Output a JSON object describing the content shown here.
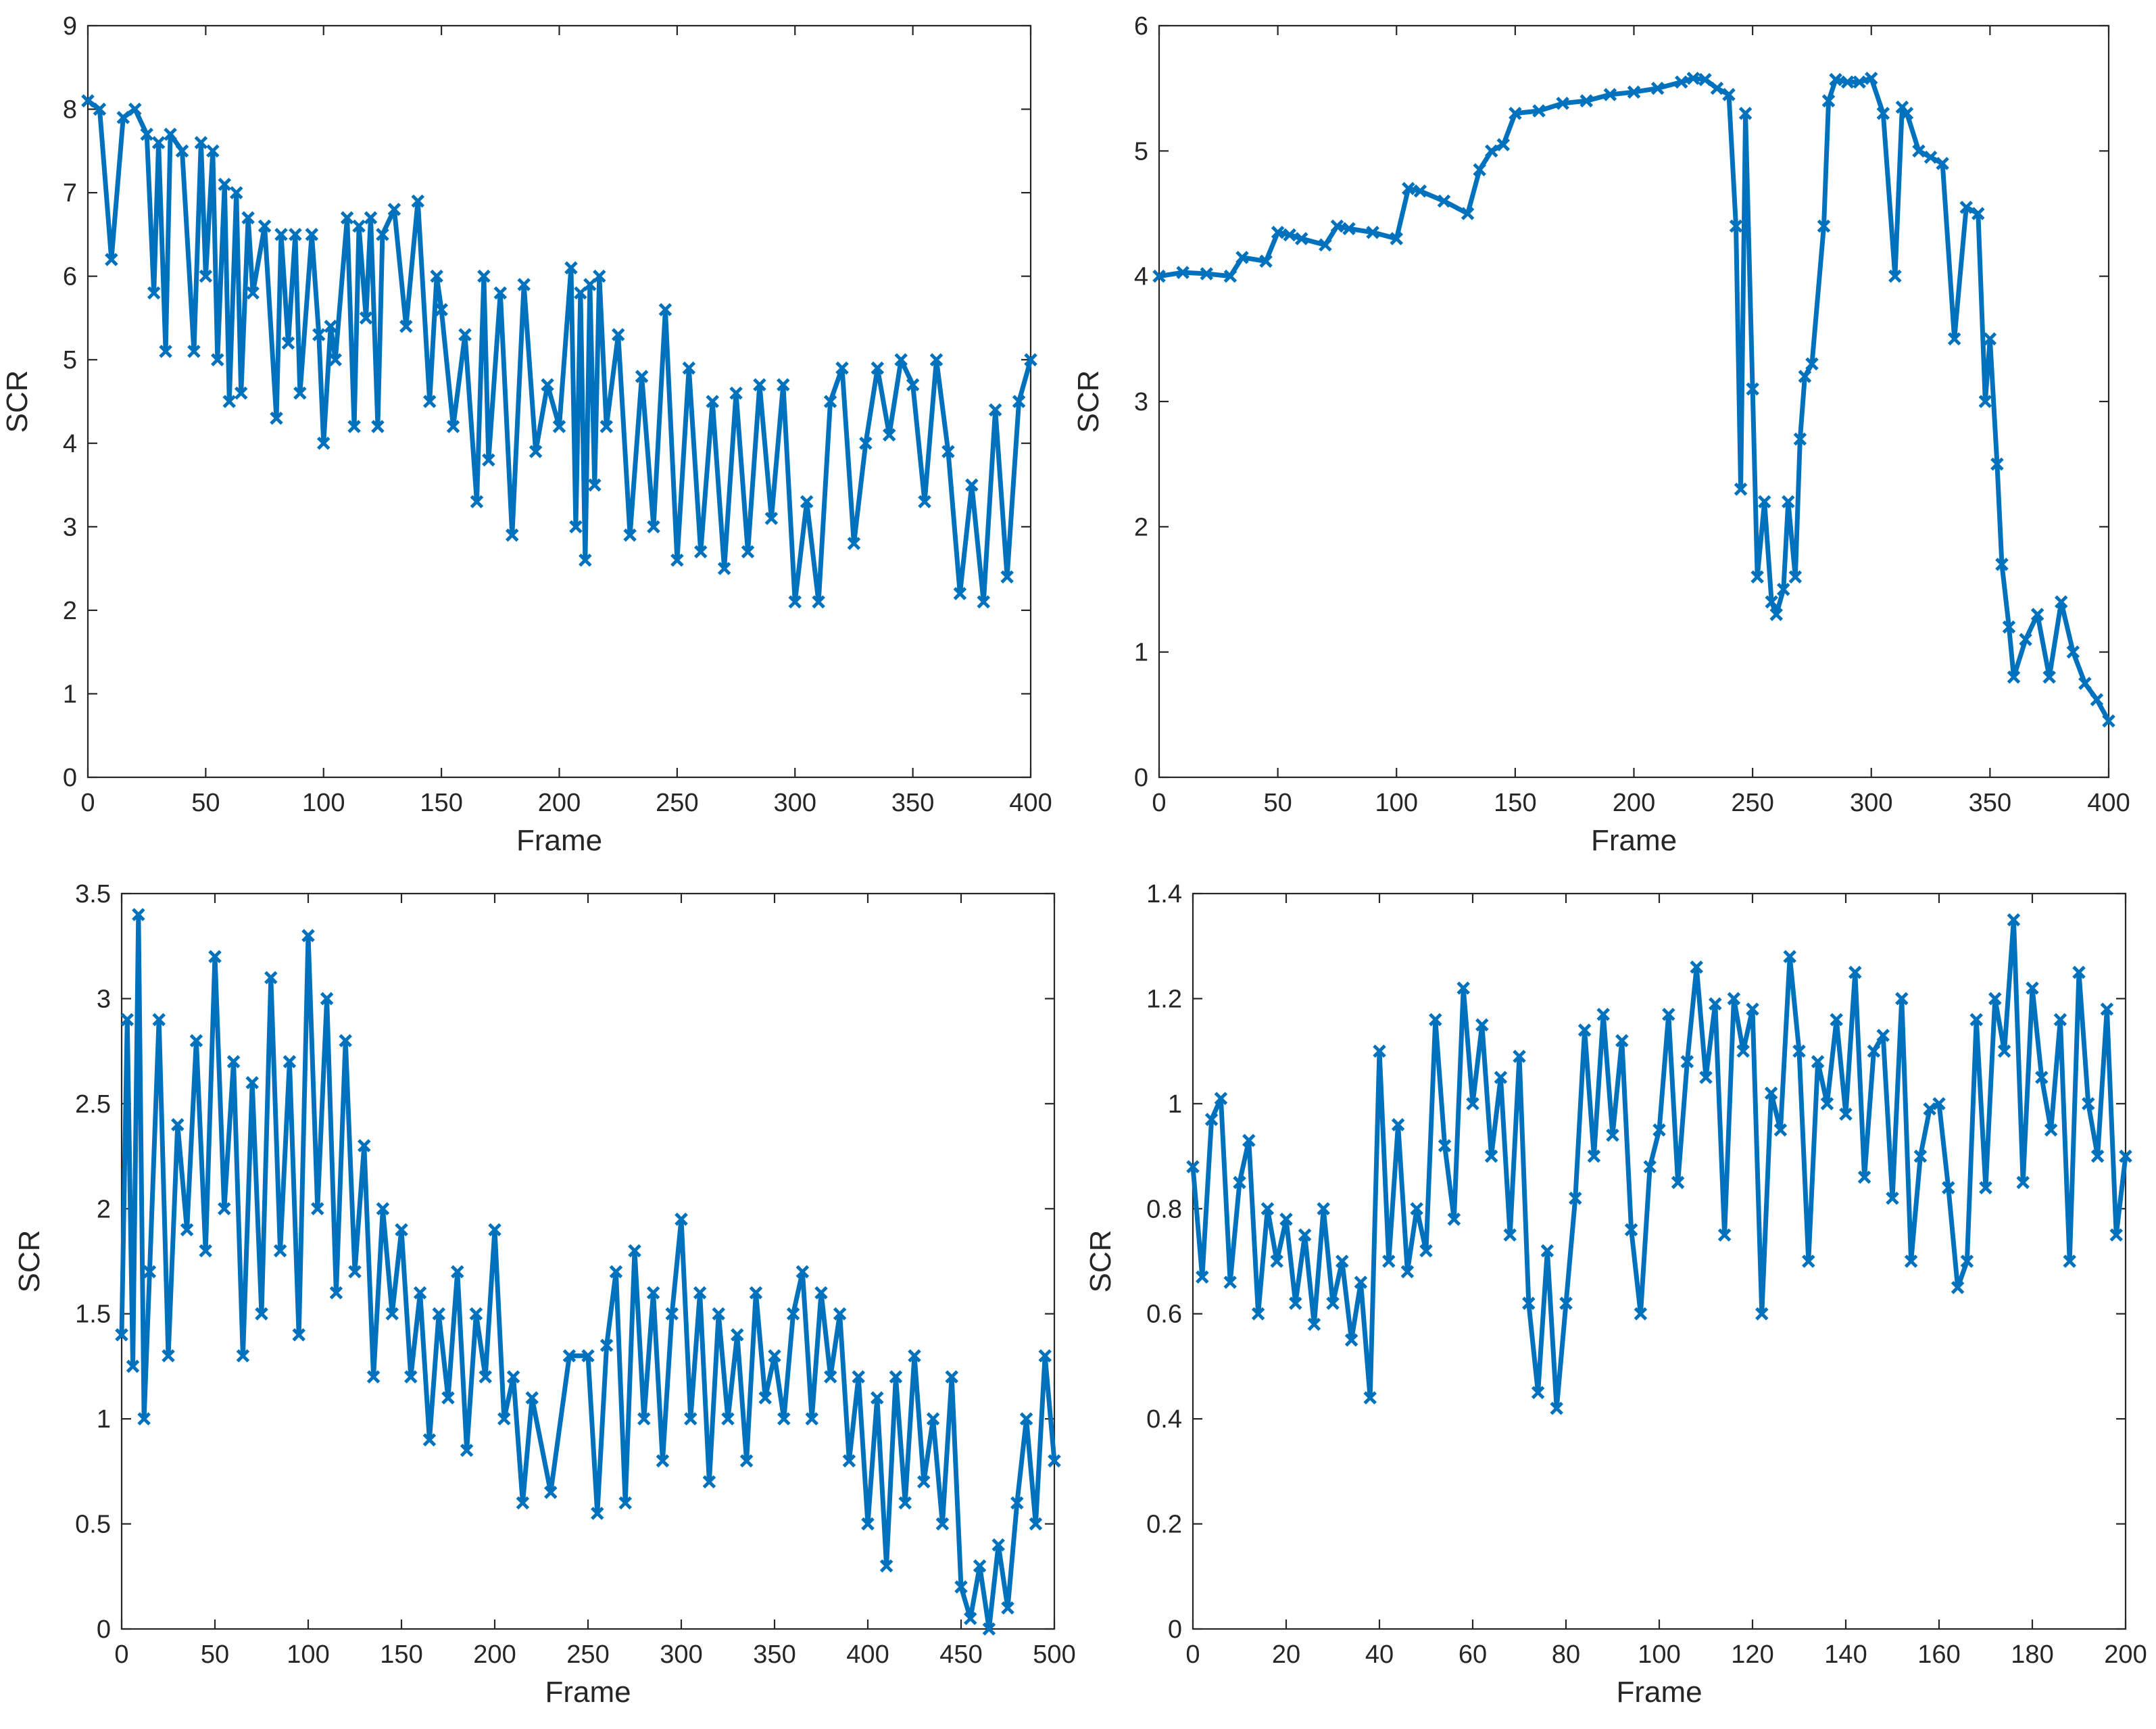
{
  "figure": {
    "series_color": "#0072BD",
    "axis_color": "#262626"
  },
  "chart_data": [
    {
      "type": "line",
      "marker": "x",
      "xlabel": "Frame",
      "ylabel": "SCR",
      "xlim": [
        0,
        400
      ],
      "ylim": [
        0,
        9
      ],
      "xticks": [
        0,
        50,
        100,
        150,
        200,
        250,
        300,
        350,
        400
      ],
      "yticks": [
        0,
        1,
        2,
        3,
        4,
        5,
        6,
        7,
        8,
        9
      ],
      "series": [
        {
          "name": "SCR",
          "x": [
            0,
            5,
            10,
            15,
            20,
            25,
            28,
            30,
            33,
            35,
            40,
            45,
            48,
            50,
            53,
            55,
            58,
            60,
            63,
            65,
            68,
            70,
            75,
            80,
            82,
            85,
            88,
            90,
            95,
            98,
            100,
            103,
            105,
            110,
            113,
            115,
            118,
            120,
            123,
            125,
            130,
            135,
            140,
            145,
            148,
            150,
            155,
            160,
            165,
            168,
            170,
            175,
            180,
            185,
            190,
            195,
            200,
            205,
            207,
            209,
            211,
            213,
            215,
            217,
            220,
            225,
            230,
            235,
            240,
            245,
            250,
            255,
            260,
            265,
            270,
            275,
            280,
            285,
            290,
            295,
            300,
            305,
            310,
            315,
            320,
            325,
            330,
            335,
            340,
            345,
            350,
            355,
            360,
            365,
            370,
            375,
            380,
            385,
            390,
            395,
            400
          ],
          "y": [
            8.1,
            8.0,
            6.2,
            7.9,
            8.0,
            7.7,
            5.8,
            7.6,
            5.1,
            7.7,
            7.5,
            5.1,
            7.6,
            6.0,
            7.5,
            5.0,
            7.1,
            4.5,
            7.0,
            4.6,
            6.7,
            5.8,
            6.6,
            4.3,
            6.5,
            5.2,
            6.5,
            4.6,
            6.5,
            5.3,
            4.0,
            5.4,
            5.0,
            6.7,
            4.2,
            6.6,
            5.5,
            6.7,
            4.2,
            6.5,
            6.8,
            5.4,
            6.9,
            4.5,
            6.0,
            5.6,
            4.2,
            5.3,
            3.3,
            6.0,
            3.8,
            5.8,
            2.9,
            5.9,
            3.9,
            4.7,
            4.2,
            6.1,
            3.0,
            5.8,
            2.6,
            5.9,
            3.5,
            6.0,
            4.2,
            5.3,
            2.9,
            4.8,
            3.0,
            5.6,
            2.6,
            4.9,
            2.7,
            4.5,
            2.5,
            4.6,
            2.7,
            4.7,
            3.1,
            4.7,
            2.1,
            3.3,
            2.1,
            4.5,
            4.9,
            2.8,
            4.0,
            4.9,
            4.1,
            5.0,
            4.7,
            3.3,
            5.0,
            3.9,
            2.2,
            3.5,
            2.1,
            4.4,
            2.4,
            4.5,
            5.0
          ]
        }
      ]
    },
    {
      "type": "line",
      "marker": "x",
      "xlabel": "Frame",
      "ylabel": "SCR",
      "xlim": [
        0,
        400
      ],
      "ylim": [
        0,
        6
      ],
      "xticks": [
        0,
        50,
        100,
        150,
        200,
        250,
        300,
        350,
        400
      ],
      "yticks": [
        0,
        1,
        2,
        3,
        4,
        5,
        6
      ],
      "series": [
        {
          "name": "SCR",
          "x": [
            0,
            10,
            20,
            30,
            35,
            45,
            50,
            55,
            60,
            70,
            75,
            80,
            90,
            100,
            105,
            110,
            120,
            130,
            135,
            140,
            145,
            150,
            160,
            170,
            180,
            190,
            200,
            210,
            220,
            225,
            230,
            235,
            240,
            243,
            245,
            247,
            250,
            252,
            255,
            258,
            260,
            263,
            265,
            268,
            270,
            272,
            275,
            280,
            282,
            285,
            290,
            295,
            300,
            305,
            310,
            313,
            315,
            320,
            325,
            330,
            335,
            340,
            345,
            348,
            350,
            353,
            355,
            358,
            360,
            365,
            370,
            375,
            380,
            385,
            390,
            395,
            400
          ],
          "y": [
            4.0,
            4.03,
            4.02,
            4.0,
            4.15,
            4.12,
            4.35,
            4.33,
            4.3,
            4.25,
            4.4,
            4.38,
            4.35,
            4.3,
            4.7,
            4.68,
            4.6,
            4.5,
            4.85,
            5.0,
            5.05,
            5.3,
            5.32,
            5.38,
            5.4,
            5.45,
            5.47,
            5.5,
            5.55,
            5.58,
            5.57,
            5.5,
            5.45,
            4.4,
            2.3,
            5.3,
            3.1,
            1.6,
            2.2,
            1.4,
            1.3,
            1.5,
            2.2,
            1.6,
            2.7,
            3.2,
            3.3,
            4.4,
            5.4,
            5.57,
            5.55,
            5.55,
            5.58,
            5.3,
            4.0,
            5.35,
            5.3,
            5.0,
            4.95,
            4.9,
            3.5,
            4.55,
            4.5,
            3.0,
            3.5,
            2.5,
            1.7,
            1.2,
            0.8,
            1.1,
            1.3,
            0.8,
            1.4,
            1.0,
            0.75,
            0.62,
            0.45
          ]
        }
      ]
    },
    {
      "type": "line",
      "marker": "x",
      "xlabel": "Frame",
      "ylabel": "SCR",
      "xlim": [
        0,
        500
      ],
      "ylim": [
        0,
        3.5
      ],
      "xticks": [
        0,
        50,
        100,
        150,
        200,
        250,
        300,
        350,
        400,
        450,
        500
      ],
      "yticks": [
        0,
        0.5,
        1,
        1.5,
        2,
        2.5,
        3,
        3.5
      ],
      "series": [
        {
          "name": "SCR",
          "x": [
            0,
            3,
            6,
            9,
            12,
            15,
            20,
            25,
            30,
            35,
            40,
            45,
            50,
            55,
            60,
            65,
            70,
            75,
            80,
            85,
            90,
            95,
            100,
            105,
            110,
            115,
            120,
            125,
            130,
            135,
            140,
            145,
            150,
            155,
            160,
            165,
            170,
            175,
            180,
            185,
            190,
            195,
            200,
            205,
            210,
            215,
            220,
            230,
            240,
            250,
            255,
            260,
            265,
            270,
            275,
            280,
            285,
            290,
            295,
            300,
            305,
            310,
            315,
            320,
            325,
            330,
            335,
            340,
            345,
            350,
            355,
            360,
            365,
            370,
            375,
            380,
            385,
            390,
            395,
            400,
            405,
            410,
            415,
            420,
            425,
            430,
            435,
            440,
            445,
            450,
            455,
            460,
            465,
            470,
            475,
            480,
            485,
            490,
            495,
            500
          ],
          "y": [
            1.4,
            2.9,
            1.25,
            3.4,
            1.0,
            1.7,
            2.9,
            1.3,
            2.4,
            1.9,
            2.8,
            1.8,
            3.2,
            2.0,
            2.7,
            1.3,
            2.6,
            1.5,
            3.1,
            1.8,
            2.7,
            1.4,
            3.3,
            2.0,
            3.0,
            1.6,
            2.8,
            1.7,
            2.3,
            1.2,
            2.0,
            1.5,
            1.9,
            1.2,
            1.6,
            0.9,
            1.5,
            1.1,
            1.7,
            0.85,
            1.5,
            1.2,
            1.9,
            1.0,
            1.2,
            0.6,
            1.1,
            0.65,
            1.3,
            1.3,
            0.55,
            1.35,
            1.7,
            0.6,
            1.8,
            1.0,
            1.6,
            0.8,
            1.5,
            1.95,
            1.0,
            1.6,
            0.7,
            1.5,
            1.0,
            1.4,
            0.8,
            1.6,
            1.1,
            1.3,
            1.0,
            1.5,
            1.7,
            1.0,
            1.6,
            1.2,
            1.5,
            0.8,
            1.2,
            0.5,
            1.1,
            0.3,
            1.2,
            0.6,
            1.3,
            0.7,
            1.0,
            0.5,
            1.2,
            0.2,
            0.05,
            0.3,
            0.0,
            0.4,
            0.1,
            0.6,
            1.0,
            0.5,
            1.3,
            0.8
          ]
        }
      ]
    },
    {
      "type": "line",
      "marker": "x",
      "xlabel": "Frame",
      "ylabel": "SCR",
      "xlim": [
        0,
        200
      ],
      "ylim": [
        0,
        1.4
      ],
      "xticks": [
        0,
        20,
        40,
        60,
        80,
        100,
        120,
        140,
        160,
        180,
        200
      ],
      "yticks": [
        0,
        0.2,
        0.4,
        0.6,
        0.8,
        1,
        1.2,
        1.4
      ],
      "series": [
        {
          "name": "SCR",
          "x": [
            0,
            2,
            4,
            6,
            8,
            10,
            12,
            14,
            16,
            18,
            20,
            22,
            24,
            26,
            28,
            30,
            32,
            34,
            36,
            38,
            40,
            42,
            44,
            46,
            48,
            50,
            52,
            54,
            56,
            58,
            60,
            62,
            64,
            66,
            68,
            70,
            72,
            74,
            76,
            78,
            80,
            82,
            84,
            86,
            88,
            90,
            92,
            94,
            96,
            98,
            100,
            102,
            104,
            106,
            108,
            110,
            112,
            114,
            116,
            118,
            120,
            122,
            124,
            126,
            128,
            130,
            132,
            134,
            136,
            138,
            140,
            142,
            144,
            146,
            148,
            150,
            152,
            154,
            156,
            158,
            160,
            162,
            164,
            166,
            168,
            170,
            172,
            174,
            176,
            178,
            180,
            182,
            184,
            186,
            188,
            190,
            192,
            194,
            196,
            198,
            200
          ],
          "y": [
            0.88,
            0.67,
            0.97,
            1.01,
            0.66,
            0.85,
            0.93,
            0.6,
            0.8,
            0.7,
            0.78,
            0.62,
            0.75,
            0.58,
            0.8,
            0.62,
            0.7,
            0.55,
            0.66,
            0.44,
            1.1,
            0.7,
            0.96,
            0.68,
            0.8,
            0.72,
            1.16,
            0.92,
            0.78,
            1.22,
            1.0,
            1.15,
            0.9,
            1.05,
            0.75,
            1.09,
            0.62,
            0.45,
            0.72,
            0.42,
            0.62,
            0.82,
            1.14,
            0.9,
            1.17,
            0.94,
            1.12,
            0.76,
            0.6,
            0.88,
            0.95,
            1.17,
            0.85,
            1.08,
            1.26,
            1.05,
            1.19,
            0.75,
            1.2,
            1.1,
            1.18,
            0.6,
            1.02,
            0.95,
            1.28,
            1.1,
            0.7,
            1.08,
            1.0,
            1.16,
            0.98,
            1.25,
            0.86,
            1.1,
            1.13,
            0.82,
            1.2,
            0.7,
            0.9,
            0.99,
            1.0,
            0.84,
            0.65,
            0.7,
            1.16,
            0.84,
            1.2,
            1.1,
            1.35,
            0.85,
            1.22,
            1.05,
            0.95,
            1.16,
            0.7,
            1.25,
            1.0,
            0.9,
            1.18,
            0.75,
            0.9
          ]
        }
      ]
    }
  ]
}
